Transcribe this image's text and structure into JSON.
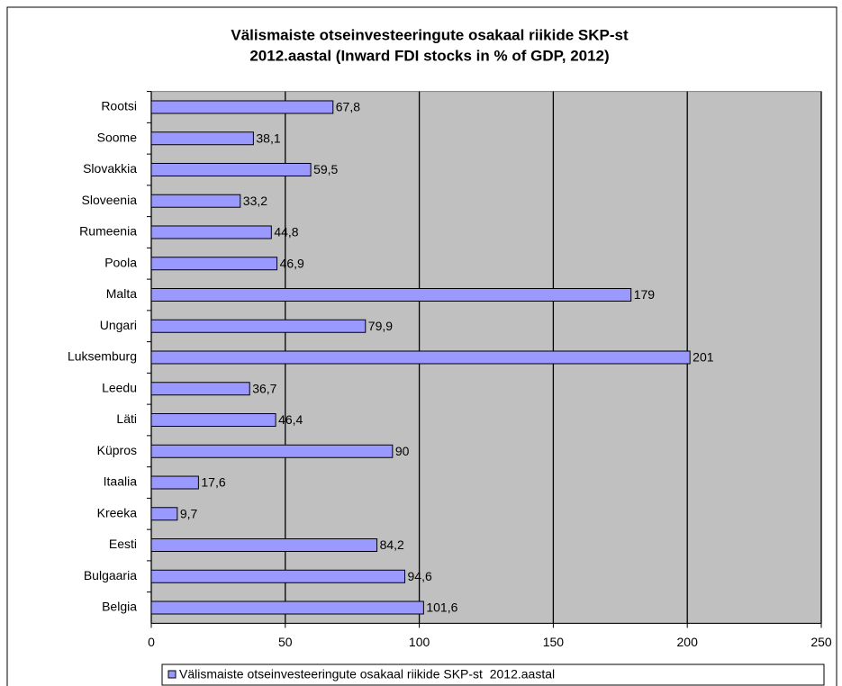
{
  "chart_data": {
    "type": "hbar",
    "title": [
      "Välismaiste otseinvesteeringute osakaal riikide SKP-st",
      "2012.aastal (Inward FDI stocks in % of GDP, 2012)"
    ],
    "categories": [
      "Rootsi",
      "Soome",
      "Slovakkia",
      "Sloveenia",
      "Rumeenia",
      "Poola",
      "Malta",
      "Ungari",
      "Luksemburg",
      "Leedu",
      "Läti",
      "Küpros",
      "Itaalia",
      "Kreeka",
      "Eesti",
      "Bulgaaria",
      "Belgia"
    ],
    "series": [
      {
        "name": "Välismaiste otseinvesteeringute osakaal riikide SKP-st  2012.aastal",
        "color": "#9999ff",
        "values": [
          67.8,
          38.1,
          59.5,
          33.2,
          44.8,
          46.9,
          179,
          79.9,
          201,
          36.7,
          46.4,
          90,
          17.6,
          9.7,
          84.2,
          94.6,
          101.6
        ],
        "value_labels": [
          "67,8",
          "38,1",
          "59,5",
          "33,2",
          "44,8",
          "46,9",
          "179",
          "79,9",
          "201",
          "36,7",
          "46,4",
          "90",
          "17,6",
          "9,7",
          "84,2",
          "94,6",
          "101,6"
        ]
      }
    ],
    "xlim": [
      0,
      250
    ],
    "xticks": [
      0,
      50,
      100,
      150,
      200,
      250
    ],
    "grid": true,
    "legend": "bottom"
  }
}
